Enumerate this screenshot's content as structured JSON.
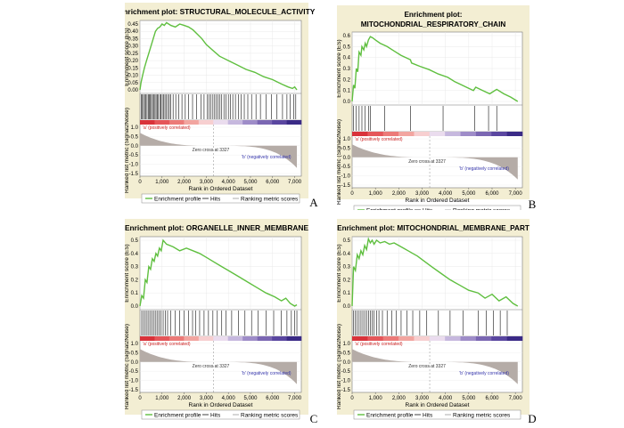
{
  "common": {
    "ylabel_es": "Enrichment score (ES)",
    "ylabel_metric": "Ranked list metric (Signal2Noise)",
    "xlabel": "Rank in Ordered Dataset",
    "pos_label": "'a' (positively correlated)",
    "neg_label": "'b' (negatively correlated)",
    "zero_cross": "Zero cross at 3327",
    "legend": [
      "Enrichment profile",
      "Hits",
      "Ranking metric scores"
    ],
    "x_ticks": [
      "0",
      "1,000",
      "2,000",
      "3,000",
      "4,000",
      "5,000",
      "6,000",
      "7,000"
    ],
    "metric_ticks": [
      "1.0",
      "0.5",
      "0.0",
      "-0.5",
      "-1.0",
      "-1.5"
    ],
    "colors": {
      "es_line": "#5fbf3f",
      "panel_bg": "#f3eed3",
      "metric_fill": "#b5aca7",
      "pos_text": "#cc2222",
      "neg_text": "#3333aa"
    }
  },
  "chart_data": [
    {
      "type": "line",
      "letter": "A",
      "title_lines": [
        "Enrichment plot: STRUCTURAL_MOLECULE_ACTIVITY"
      ],
      "ylim": [
        0,
        0.45
      ],
      "es_ticks": [
        "0.45",
        "0.40",
        "0.35",
        "0.30",
        "0.25",
        "0.20",
        "0.15",
        "0.10",
        "0.05",
        "0.00"
      ],
      "xlim": [
        0,
        7300
      ],
      "x": [
        0,
        50,
        120,
        200,
        300,
        400,
        500,
        600,
        700,
        800,
        900,
        1000,
        1100,
        1200,
        1300,
        1400,
        1600,
        1800,
        2000,
        2200,
        2400,
        2600,
        2800,
        3000,
        3300,
        3600,
        4000,
        4400,
        4800,
        5200,
        5600,
        6000,
        6400,
        6700,
        6900,
        7000,
        7100
      ],
      "es": [
        0.0,
        0.05,
        0.1,
        0.15,
        0.2,
        0.25,
        0.3,
        0.35,
        0.4,
        0.42,
        0.43,
        0.45,
        0.44,
        0.46,
        0.45,
        0.44,
        0.43,
        0.45,
        0.44,
        0.43,
        0.41,
        0.38,
        0.35,
        0.31,
        0.27,
        0.23,
        0.2,
        0.17,
        0.14,
        0.12,
        0.09,
        0.07,
        0.04,
        0.02,
        0.01,
        0.02,
        0.0
      ],
      "hits": [
        60,
        110,
        160,
        210,
        260,
        320,
        380,
        420,
        470,
        520,
        570,
        620,
        680,
        730,
        780,
        830,
        900,
        950,
        1010,
        1070,
        1130,
        1190,
        1260,
        1330,
        1400,
        1500,
        1620,
        1760,
        1900,
        2050,
        2200,
        2380,
        2560,
        2760,
        2900,
        3050,
        3120,
        3200,
        3300,
        3380,
        3460,
        3540,
        3620,
        3700,
        3800,
        3900,
        4000,
        4100,
        4200,
        4320,
        4450,
        4580,
        4720,
        4880,
        5050,
        5250,
        5450,
        5700,
        5950,
        6200,
        6450,
        6650,
        6800,
        6950,
        7050
      ]
    },
    {
      "type": "line",
      "letter": "B",
      "title_lines": [
        "Enrichment plot:",
        "MITOCHONDRIAL_RESPIRATORY_CHAIN"
      ],
      "ylim": [
        0,
        0.6
      ],
      "es_ticks": [
        "0.6",
        "0.5",
        "0.4",
        "0.3",
        "0.2",
        "0.1",
        "0.0"
      ],
      "xlim": [
        0,
        7300
      ],
      "x": [
        0,
        60,
        120,
        180,
        240,
        300,
        380,
        420,
        500,
        560,
        620,
        700,
        780,
        880,
        1000,
        1200,
        1500,
        1800,
        2100,
        2500,
        2550,
        2900,
        3300,
        3700,
        4100,
        4400,
        4700,
        5000,
        5200,
        5300,
        5600,
        5900,
        6200,
        6500,
        6800,
        7100
      ],
      "es": [
        0.0,
        0.15,
        0.12,
        0.3,
        0.27,
        0.45,
        0.42,
        0.5,
        0.47,
        0.53,
        0.5,
        0.56,
        0.59,
        0.58,
        0.56,
        0.53,
        0.5,
        0.46,
        0.42,
        0.38,
        0.35,
        0.32,
        0.29,
        0.25,
        0.22,
        0.18,
        0.15,
        0.12,
        0.1,
        0.13,
        0.1,
        0.07,
        0.11,
        0.07,
        0.04,
        0.0
      ],
      "hits": [
        60,
        180,
        300,
        420,
        560,
        700,
        780,
        1400,
        2500,
        3900,
        5250,
        5850,
        6200
      ]
    },
    {
      "type": "line",
      "letter": "C",
      "title_lines": [
        "Enrichment plot: ORGANELLE_INNER_MEMBRANE"
      ],
      "ylim": [
        0,
        0.5
      ],
      "es_ticks": [
        "0.5",
        "0.4",
        "0.3",
        "0.2",
        "0.1",
        "0.0"
      ],
      "xlim": [
        0,
        7300
      ],
      "x": [
        0,
        80,
        160,
        240,
        320,
        400,
        480,
        560,
        640,
        720,
        800,
        880,
        960,
        1050,
        1200,
        1500,
        1800,
        2100,
        2400,
        2700,
        3000,
        3300,
        3700,
        4100,
        4500,
        4900,
        5300,
        5700,
        6100,
        6400,
        6600,
        6800,
        7000,
        7100
      ],
      "es": [
        0.0,
        0.08,
        0.06,
        0.2,
        0.18,
        0.3,
        0.28,
        0.36,
        0.34,
        0.4,
        0.38,
        0.44,
        0.42,
        0.5,
        0.47,
        0.45,
        0.42,
        0.44,
        0.42,
        0.4,
        0.37,
        0.34,
        0.3,
        0.26,
        0.22,
        0.18,
        0.14,
        0.1,
        0.07,
        0.04,
        0.06,
        0.02,
        0.0,
        0.01
      ],
      "hits": [
        80,
        160,
        240,
        320,
        400,
        480,
        560,
        640,
        720,
        800,
        880,
        960,
        1050,
        1150,
        1250,
        1400,
        1600,
        1800,
        2000,
        2200,
        2380,
        2520,
        2700,
        2900,
        3100,
        3300,
        3500,
        3700,
        3900,
        4150,
        4450,
        4750,
        5050,
        5350,
        5700,
        6050,
        6400,
        6650,
        6850,
        7000,
        7100
      ]
    },
    {
      "type": "line",
      "letter": "D",
      "title_lines": [
        "Enrichment plot: MITOCHONDRIAL_MEMBRANE_PART"
      ],
      "ylim": [
        0,
        0.5
      ],
      "es_ticks": [
        "0.5",
        "0.4",
        "0.3",
        "0.2",
        "0.1",
        "0.0"
      ],
      "xlim": [
        0,
        7300
      ],
      "x": [
        0,
        60,
        140,
        220,
        300,
        380,
        460,
        540,
        620,
        700,
        780,
        860,
        940,
        1050,
        1200,
        1400,
        1600,
        1800,
        2000,
        2200,
        2400,
        2600,
        2800,
        3100,
        3400,
        3800,
        4200,
        4600,
        5000,
        5400,
        5700,
        6000,
        6300,
        6600,
        6900,
        7100
      ],
      "es": [
        0.0,
        0.3,
        0.27,
        0.39,
        0.36,
        0.42,
        0.39,
        0.46,
        0.43,
        0.51,
        0.48,
        0.5,
        0.47,
        0.5,
        0.48,
        0.49,
        0.47,
        0.48,
        0.46,
        0.44,
        0.42,
        0.4,
        0.38,
        0.34,
        0.3,
        0.25,
        0.2,
        0.16,
        0.12,
        0.1,
        0.06,
        0.09,
        0.04,
        0.07,
        0.02,
        0.0
      ],
      "hits": [
        60,
        140,
        220,
        300,
        380,
        460,
        540,
        620,
        700,
        780,
        860,
        940,
        1050,
        1150,
        1300,
        1500,
        1700,
        1900,
        2100,
        2350,
        2600,
        2900,
        3200,
        3700,
        4200,
        4750,
        5400,
        5750,
        6050,
        6350,
        6650
      ]
    }
  ]
}
